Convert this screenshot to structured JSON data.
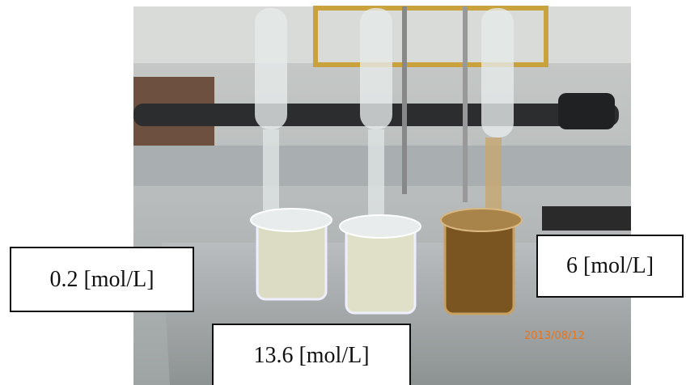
{
  "labels": [
    "0.2 [mol/L]",
    "13.6 [mol/L]",
    "6 [mol/L]"
  ],
  "photo": {
    "date_stamp": "2013/08/12"
  }
}
